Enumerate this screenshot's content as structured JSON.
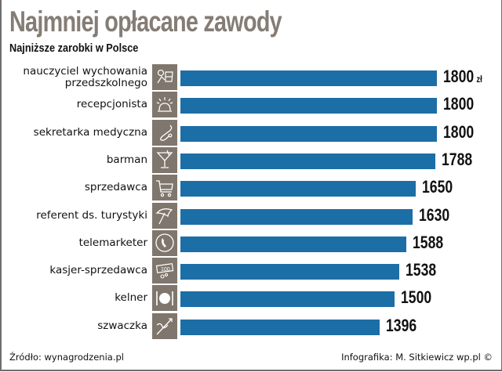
{
  "header": {
    "title": "Najmniej opłacane zawody",
    "subtitle": "Najniższe zarobki w Polsce"
  },
  "footer": {
    "source": "Źródło: wynagrodzenia.pl",
    "credit": "Infografika: M. Sitkiewicz wp.pl ©"
  },
  "colors": {
    "bar": "#1c6ea6",
    "icon_bg": "#7f766d",
    "title": "#857d75"
  },
  "rows": [
    {
      "label_line1": "nauczyciel wychowania",
      "label_line2": "przedszkolnego",
      "icon": "teacher-icon",
      "value": "1800",
      "unit": "zł"
    },
    {
      "label_line1": "recepcjonista",
      "label_line2": "",
      "icon": "reception-bell-icon",
      "value": "1800",
      "unit": ""
    },
    {
      "label_line1": "sekretarka medyczna",
      "label_line2": "",
      "icon": "stethoscope-icon",
      "value": "1800",
      "unit": ""
    },
    {
      "label_line1": "barman",
      "label_line2": "",
      "icon": "cocktail-glass-icon",
      "value": "1788",
      "unit": ""
    },
    {
      "label_line1": "sprzedawca",
      "label_line2": "",
      "icon": "shopping-cart-icon",
      "value": "1650",
      "unit": ""
    },
    {
      "label_line1": "referent ds. turystyki",
      "label_line2": "",
      "icon": "beach-umbrella-icon",
      "value": "1630",
      "unit": ""
    },
    {
      "label_line1": "telemarketer",
      "label_line2": "",
      "icon": "telephone-icon",
      "value": "1588",
      "unit": ""
    },
    {
      "label_line1": "kasjer-sprzedawca",
      "label_line2": "",
      "icon": "banknote-coins-icon",
      "value": "1538",
      "unit": ""
    },
    {
      "label_line1": "kelner",
      "label_line2": "",
      "icon": "plate-cutlery-icon",
      "value": "1500",
      "unit": ""
    },
    {
      "label_line1": "szwaczka",
      "label_line2": "",
      "icon": "needle-thread-icon",
      "value": "1396",
      "unit": ""
    }
  ],
  "chart_data": {
    "type": "bar",
    "orientation": "horizontal",
    "title": "Najmniej opłacane zawody",
    "subtitle": "Najniższe zarobki w Polsce",
    "categories": [
      "nauczyciel wychowania przedszkolnego",
      "recepcjonista",
      "sekretarka medyczna",
      "barman",
      "sprzedawca",
      "referent ds. turystyki",
      "telemarketer",
      "kasjer-sprzedawca",
      "kelner",
      "szwaczka"
    ],
    "values": [
      1800,
      1800,
      1800,
      1788,
      1650,
      1630,
      1588,
      1538,
      1500,
      1396
    ],
    "unit": "zł",
    "xlabel": "",
    "ylabel": "",
    "grid": false,
    "legend": "none",
    "data_labels": true,
    "source": "Źródło: wynagrodzenia.pl",
    "credit": "Infografika: M. Sitkiewicz wp.pl ©"
  }
}
